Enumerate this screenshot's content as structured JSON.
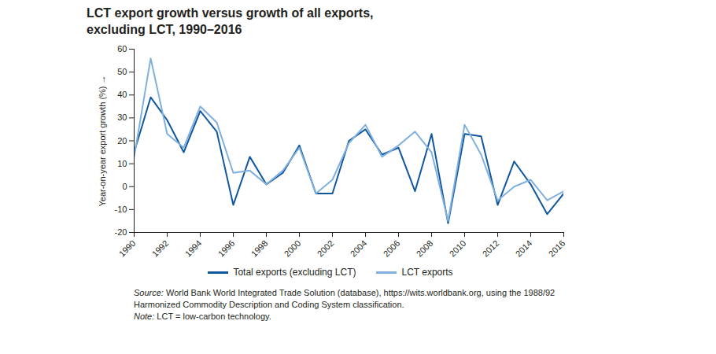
{
  "chart_data": {
    "type": "line",
    "title": "LCT export growth versus growth of all exports, excluding LCT, 1990–2016",
    "y_label": "Year-on-year export growth (%)",
    "x": [
      1990,
      1991,
      1992,
      1993,
      1994,
      1995,
      1996,
      1997,
      1998,
      1999,
      2000,
      2001,
      2002,
      2003,
      2004,
      2005,
      2006,
      2007,
      2008,
      2009,
      2010,
      2011,
      2012,
      2013,
      2014,
      2015,
      2016
    ],
    "series": [
      {
        "name": "Total exports (excluding LCT)",
        "color": "#11579f",
        "values": [
          15,
          39,
          29,
          15,
          33,
          24,
          -8,
          13,
          1,
          6,
          18,
          -3,
          -3,
          20,
          25,
          14,
          17,
          -2,
          23,
          -16,
          23,
          22,
          -8,
          11,
          1,
          -12,
          -3
        ]
      },
      {
        "name": "LCT exports",
        "color": "#7fb0de",
        "values": [
          13,
          56,
          23,
          17,
          35,
          28,
          6,
          7,
          1,
          7,
          17,
          -3,
          3,
          19,
          27,
          13,
          18,
          24,
          15,
          -15,
          27,
          14,
          -6,
          0,
          3,
          -6,
          -2
        ]
      }
    ],
    "xlim": [
      1990,
      2016
    ],
    "xticks": [
      1990,
      1992,
      1994,
      1996,
      1998,
      2000,
      2002,
      2004,
      2006,
      2008,
      2010,
      2012,
      2014,
      2016
    ],
    "ylim": [
      -20,
      60
    ],
    "yticks": [
      -20,
      -10,
      0,
      10,
      20,
      30,
      40,
      50,
      60
    ],
    "grid": false,
    "legend": "bottom",
    "source": "Source: World Bank World Integrated Trade Solution (database), https://wits.worldbank.org, using the 1988/92 Harmonized Commodity Description and Coding System classification.",
    "note": "Note: LCT = low-carbon technology."
  }
}
